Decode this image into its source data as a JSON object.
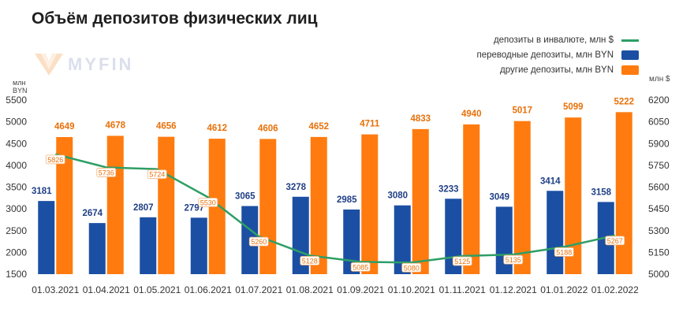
{
  "title": "Объём депозитов физических лиц",
  "brand": "MYFIN",
  "colors": {
    "blue": "#1b4fa3",
    "orange": "#ff7b0f",
    "green": "#2e9e66"
  },
  "legend": [
    {
      "label": "депозиты в инвалюте, млн $",
      "type": "line",
      "color": "#2e9e66"
    },
    {
      "label": "переводные депозиты, млн BYN",
      "type": "box",
      "color": "#1b4fa3"
    },
    {
      "label": "другие депозиты, млн BYN",
      "type": "box",
      "color": "#ff7b0f"
    }
  ],
  "axis": {
    "left_unit_line1": "млн",
    "left_unit_line2": "BYN",
    "right_unit": "млн $"
  },
  "chart_data": {
    "type": "bar",
    "title": "Объём депозитов физических лиц",
    "categories": [
      "01.03.2021",
      "01.04.2021",
      "01.05.2021",
      "01.06.2021",
      "01.07.2021",
      "01.08.2021",
      "01.09.2021",
      "01.10.2021",
      "01.11.2021",
      "01.12.2021",
      "01.01.2022",
      "01.02.2022"
    ],
    "series": [
      {
        "name": "переводные депозиты, млн BYN",
        "type": "bar",
        "axis": "left",
        "values": [
          3181,
          2674,
          2807,
          2797,
          3065,
          3278,
          2985,
          3080,
          3233,
          3049,
          3414,
          3158
        ]
      },
      {
        "name": "другие депозиты, млн BYN",
        "type": "bar",
        "axis": "left",
        "values": [
          4649,
          4678,
          4656,
          4612,
          4606,
          4652,
          4711,
          4833,
          4940,
          5017,
          5099,
          5222
        ]
      },
      {
        "name": "депозиты в инвалюте, млн $",
        "type": "line",
        "axis": "right",
        "values": [
          5826,
          5736,
          5724,
          5530,
          5260,
          5128,
          5085,
          5080,
          5125,
          5135,
          5188,
          5267
        ]
      }
    ],
    "ylim_left": [
      1500,
      5500
    ],
    "yticks_left": [
      1500,
      2000,
      2500,
      3000,
      3500,
      4000,
      4500,
      5000,
      5500
    ],
    "ylim_right": [
      5000,
      6200
    ],
    "yticks_right": [
      5000,
      5150,
      5300,
      5450,
      5600,
      5750,
      5900,
      6050,
      6200
    ],
    "grid": false,
    "legend_position": "top-right"
  }
}
